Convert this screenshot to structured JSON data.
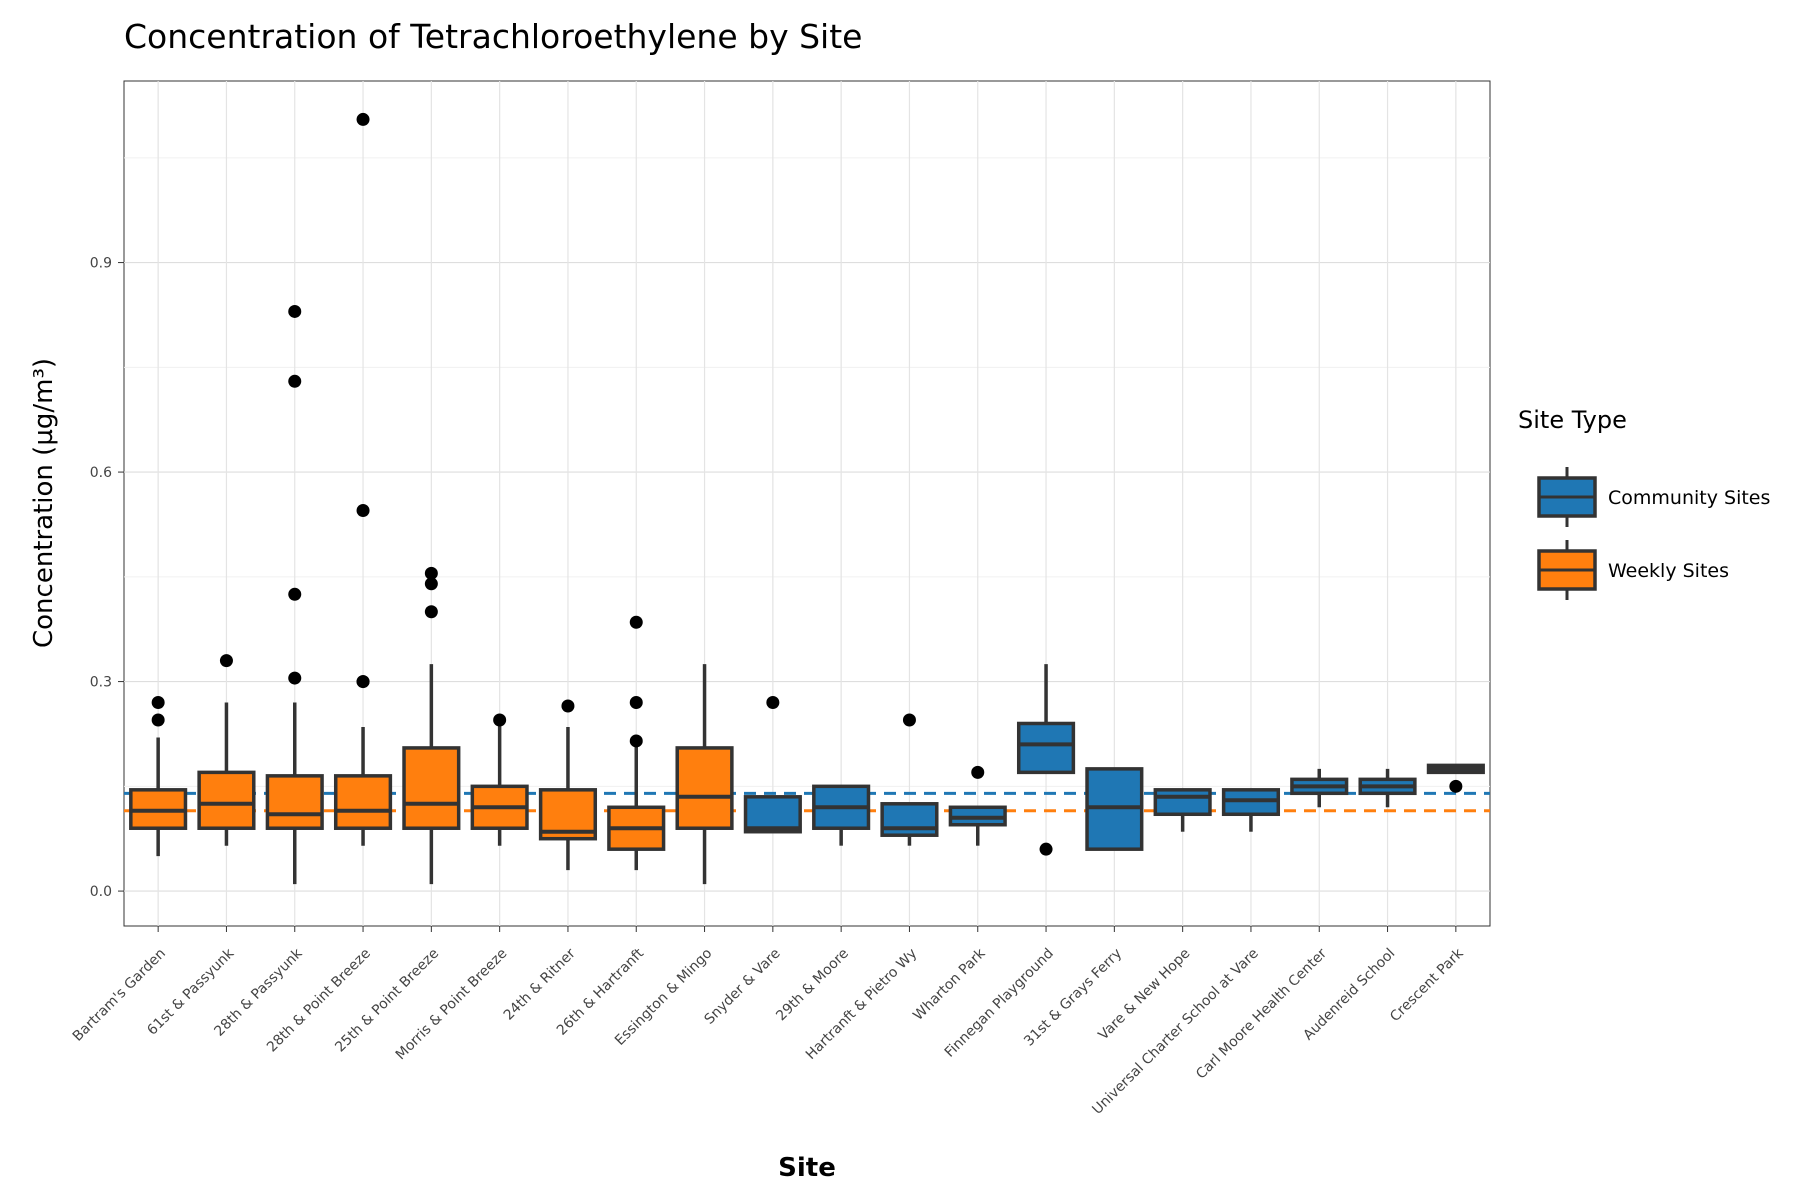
{
  "chart_data": {
    "type": "box",
    "title": "Concentration of Tetrachloroethylene by Site",
    "xlabel": "Site",
    "ylabel": "Concentration (µg/m³)",
    "ylim": [
      -0.05,
      1.16
    ],
    "yticks": [
      0.0,
      0.3,
      0.6,
      0.9
    ],
    "ytick_labels": [
      "0.0",
      "0.3",
      "0.6",
      "0.9"
    ],
    "grid": true,
    "legend": {
      "title": "Site Type",
      "position": "right",
      "items": [
        {
          "label": "Community Sites",
          "color": "#1f77b4"
        },
        {
          "label": "Weekly Sites",
          "color": "#ff7f0e"
        }
      ]
    },
    "reference_lines": [
      {
        "group": "Community Sites",
        "value": 0.14,
        "color": "#1f77b4",
        "style": "dashed"
      },
      {
        "group": "Weekly Sites",
        "value": 0.115,
        "color": "#ff7f0e",
        "style": "dashed"
      }
    ],
    "series": [
      {
        "site": "Bartram's Garden",
        "type": "Weekly Sites",
        "whisker_low": 0.05,
        "q1": 0.09,
        "median": 0.115,
        "q3": 0.145,
        "whisker_high": 0.22,
        "outliers": [
          0.245,
          0.27
        ]
      },
      {
        "site": "61st & Passyunk",
        "type": "Weekly Sites",
        "whisker_low": 0.065,
        "q1": 0.09,
        "median": 0.125,
        "q3": 0.17,
        "whisker_high": 0.27,
        "outliers": [
          0.33
        ]
      },
      {
        "site": "28th & Passyunk",
        "type": "Weekly Sites",
        "whisker_low": 0.01,
        "q1": 0.09,
        "median": 0.11,
        "q3": 0.165,
        "whisker_high": 0.27,
        "outliers": [
          0.305,
          0.425,
          0.73,
          0.83
        ]
      },
      {
        "site": "28th & Point Breeze",
        "type": "Weekly Sites",
        "whisker_low": 0.065,
        "q1": 0.09,
        "median": 0.115,
        "q3": 0.165,
        "whisker_high": 0.235,
        "outliers": [
          0.3,
          0.3,
          0.545,
          1.105
        ]
      },
      {
        "site": "25th & Point Breeze",
        "type": "Weekly Sites",
        "whisker_low": 0.01,
        "q1": 0.09,
        "median": 0.125,
        "q3": 0.205,
        "whisker_high": 0.325,
        "outliers": [
          0.4,
          0.44,
          0.455
        ]
      },
      {
        "site": "Morris & Point Breeze",
        "type": "Weekly Sites",
        "whisker_low": 0.065,
        "q1": 0.09,
        "median": 0.12,
        "q3": 0.15,
        "whisker_high": 0.245,
        "outliers": [
          0.245
        ]
      },
      {
        "site": "24th & Ritner",
        "type": "Weekly Sites",
        "whisker_low": 0.03,
        "q1": 0.075,
        "median": 0.085,
        "q3": 0.145,
        "whisker_high": 0.235,
        "outliers": [
          0.265
        ]
      },
      {
        "site": "26th & Hartranft",
        "type": "Weekly Sites",
        "whisker_low": 0.03,
        "q1": 0.06,
        "median": 0.09,
        "q3": 0.12,
        "whisker_high": 0.21,
        "outliers": [
          0.215,
          0.27,
          0.385
        ]
      },
      {
        "site": "Essington & Mingo",
        "type": "Weekly Sites",
        "whisker_low": 0.01,
        "q1": 0.09,
        "median": 0.135,
        "q3": 0.205,
        "whisker_high": 0.325,
        "outliers": []
      },
      {
        "site": "Snyder & Vare",
        "type": "Community Sites",
        "whisker_low": 0.085,
        "q1": 0.085,
        "median": 0.09,
        "q3": 0.135,
        "whisker_high": 0.135,
        "outliers": [
          0.27
        ]
      },
      {
        "site": "29th & Moore",
        "type": "Community Sites",
        "whisker_low": 0.065,
        "q1": 0.09,
        "median": 0.12,
        "q3": 0.15,
        "whisker_high": 0.15,
        "outliers": []
      },
      {
        "site": "Hartranft & Pietro Wy",
        "type": "Community Sites",
        "whisker_low": 0.065,
        "q1": 0.08,
        "median": 0.09,
        "q3": 0.125,
        "whisker_high": 0.125,
        "outliers": [
          0.245
        ]
      },
      {
        "site": "Wharton Park",
        "type": "Community Sites",
        "whisker_low": 0.065,
        "q1": 0.095,
        "median": 0.105,
        "q3": 0.12,
        "whisker_high": 0.12,
        "outliers": [
          0.17
        ]
      },
      {
        "site": "Finnegan Playground",
        "type": "Community Sites",
        "whisker_low": 0.17,
        "q1": 0.17,
        "median": 0.21,
        "q3": 0.24,
        "whisker_high": 0.325,
        "outliers": [
          0.06
        ]
      },
      {
        "site": "31st & Grays Ferry",
        "type": "Community Sites",
        "whisker_low": 0.06,
        "q1": 0.06,
        "median": 0.12,
        "q3": 0.175,
        "whisker_high": 0.175,
        "outliers": []
      },
      {
        "site": "Vare & New Hope",
        "type": "Community Sites",
        "whisker_low": 0.085,
        "q1": 0.11,
        "median": 0.135,
        "q3": 0.145,
        "whisker_high": 0.145,
        "outliers": []
      },
      {
        "site": "Universal Charter School at Vare",
        "type": "Community Sites",
        "whisker_low": 0.085,
        "q1": 0.11,
        "median": 0.13,
        "q3": 0.145,
        "whisker_high": 0.145,
        "outliers": []
      },
      {
        "site": "Carl Moore Health Center",
        "type": "Community Sites",
        "whisker_low": 0.12,
        "q1": 0.14,
        "median": 0.15,
        "q3": 0.16,
        "whisker_high": 0.175,
        "outliers": []
      },
      {
        "site": "Audenreid School",
        "type": "Community Sites",
        "whisker_low": 0.12,
        "q1": 0.14,
        "median": 0.15,
        "q3": 0.16,
        "whisker_high": 0.175,
        "outliers": []
      },
      {
        "site": "Crescent Park",
        "type": "Community Sites",
        "whisker_low": 0.17,
        "q1": 0.17,
        "median": 0.175,
        "q3": 0.18,
        "whisker_high": 0.18,
        "outliers": [
          0.15
        ]
      }
    ]
  }
}
